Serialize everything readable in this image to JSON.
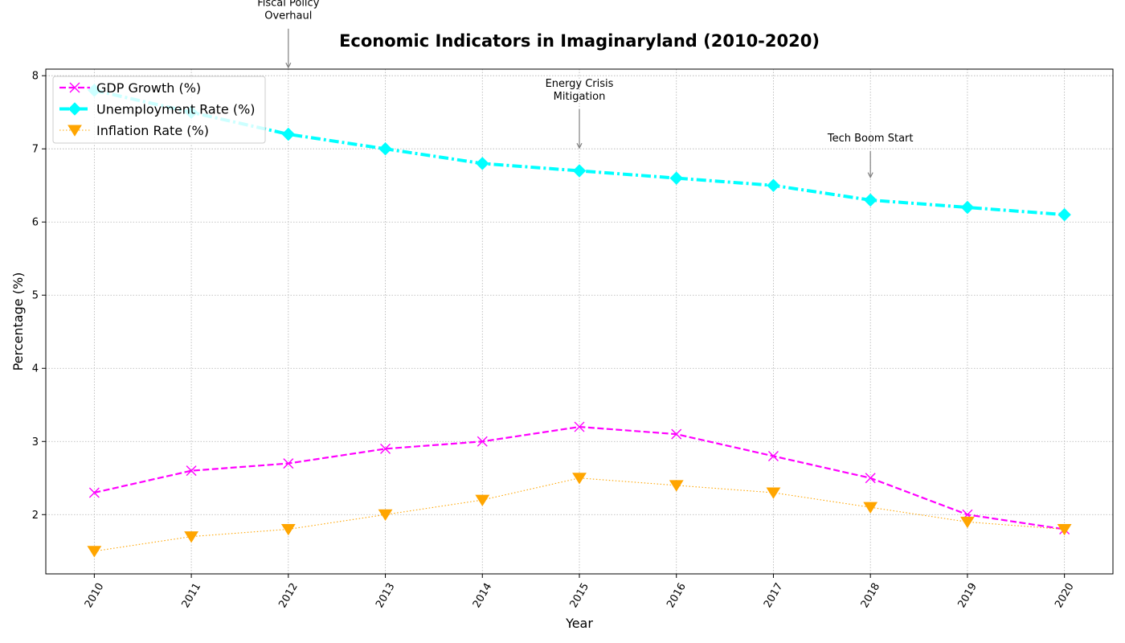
{
  "chart_data": {
    "type": "line",
    "title": "Economic Indicators in Imaginaryland (2010-2020)",
    "xlabel": "Year",
    "ylabel": "Percentage (%)",
    "x": [
      2010,
      2011,
      2012,
      2013,
      2014,
      2015,
      2016,
      2017,
      2018,
      2019,
      2020
    ],
    "x_tick_labels": [
      "2010",
      "2011",
      "2012",
      "2013",
      "2014",
      "2015",
      "2016",
      "2017",
      "2018",
      "2019",
      "2020"
    ],
    "y_ticks": [
      2,
      3,
      4,
      5,
      6,
      7,
      8
    ],
    "y_tick_labels": [
      "2",
      "3",
      "4",
      "5",
      "6",
      "7",
      "8"
    ],
    "xlim": [
      2009.5,
      2020.5
    ],
    "ylim": [
      1.19,
      8.09
    ],
    "grid": true,
    "legend_position": "top-left",
    "series": [
      {
        "name": "GDP Growth (%)",
        "values": [
          2.3,
          2.6,
          2.7,
          2.9,
          3.0,
          3.2,
          3.1,
          2.8,
          2.5,
          2.0,
          1.8
        ],
        "color": "#ff00ff",
        "marker": "x",
        "line_style": "dashed"
      },
      {
        "name": "Unemployment Rate (%)",
        "values": [
          7.8,
          7.5,
          7.2,
          7.0,
          6.8,
          6.7,
          6.6,
          6.5,
          6.3,
          6.2,
          6.1
        ],
        "color": "#00ffff",
        "marker": "diamond",
        "line_style": "dashdot"
      },
      {
        "name": "Inflation Rate (%)",
        "values": [
          1.5,
          1.7,
          1.8,
          2.0,
          2.2,
          2.5,
          2.4,
          2.3,
          2.1,
          1.9,
          1.8
        ],
        "color": "#ffa500",
        "marker": "triangle-down",
        "line_style": "dotted"
      }
    ],
    "annotations": [
      {
        "lines": [
          "Fiscal Policy",
          "Overhaul"
        ],
        "x": 2012,
        "y": 8.1,
        "text_y": 8.95
      },
      {
        "lines": [
          "Energy Crisis",
          "Mitigation"
        ],
        "x": 2015,
        "y": 7.0,
        "text_y": 7.85
      },
      {
        "lines": [
          "Tech Boom Start"
        ],
        "x": 2018,
        "y": 6.6,
        "text_y": 7.1
      }
    ]
  }
}
